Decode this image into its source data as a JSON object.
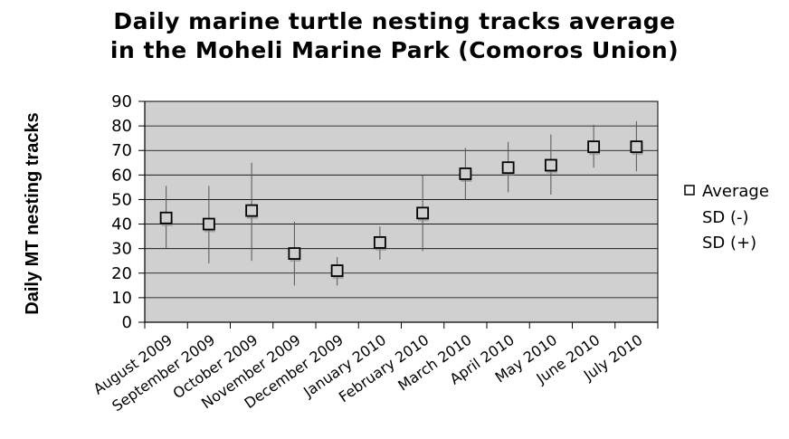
{
  "chart_data": {
    "type": "scatter",
    "title_lines": [
      "Daily marine turtle nesting tracks average",
      "in the Moheli Marine Park (Comoros Union)"
    ],
    "ylabel": "Daily MT nesting tracks",
    "xlabel": "",
    "ylim": [
      0,
      90
    ],
    "yticks": [
      0,
      10,
      20,
      30,
      40,
      50,
      60,
      70,
      80,
      90
    ],
    "grid": true,
    "legend_position": "right",
    "categories": [
      "August 2009",
      "September 2009",
      "October 2009",
      "November 2009",
      "December 2009",
      "January 2010",
      "February 2010",
      "March 2010",
      "April 2010",
      "May 2010",
      "June 2010",
      "July 2010"
    ],
    "series": [
      {
        "name": "Average",
        "values": [
          42.5,
          40,
          45.5,
          28,
          21,
          32.5,
          44.5,
          60.5,
          63,
          64,
          71.5,
          71.5
        ]
      },
      {
        "name": "SD (-)",
        "values": [
          30,
          24,
          25,
          15,
          15,
          25.5,
          29,
          50,
          53,
          52,
          63,
          61.5
        ]
      },
      {
        "name": "SD (+)",
        "values": [
          55.5,
          55.5,
          65,
          41,
          26.5,
          39,
          60,
          71,
          73.5,
          76.5,
          80.5,
          82
        ]
      }
    ],
    "colors": {
      "plot_background": "#d0d0d0",
      "grid": "#000000",
      "marker": "#000000",
      "error_bar": "#555555"
    }
  }
}
